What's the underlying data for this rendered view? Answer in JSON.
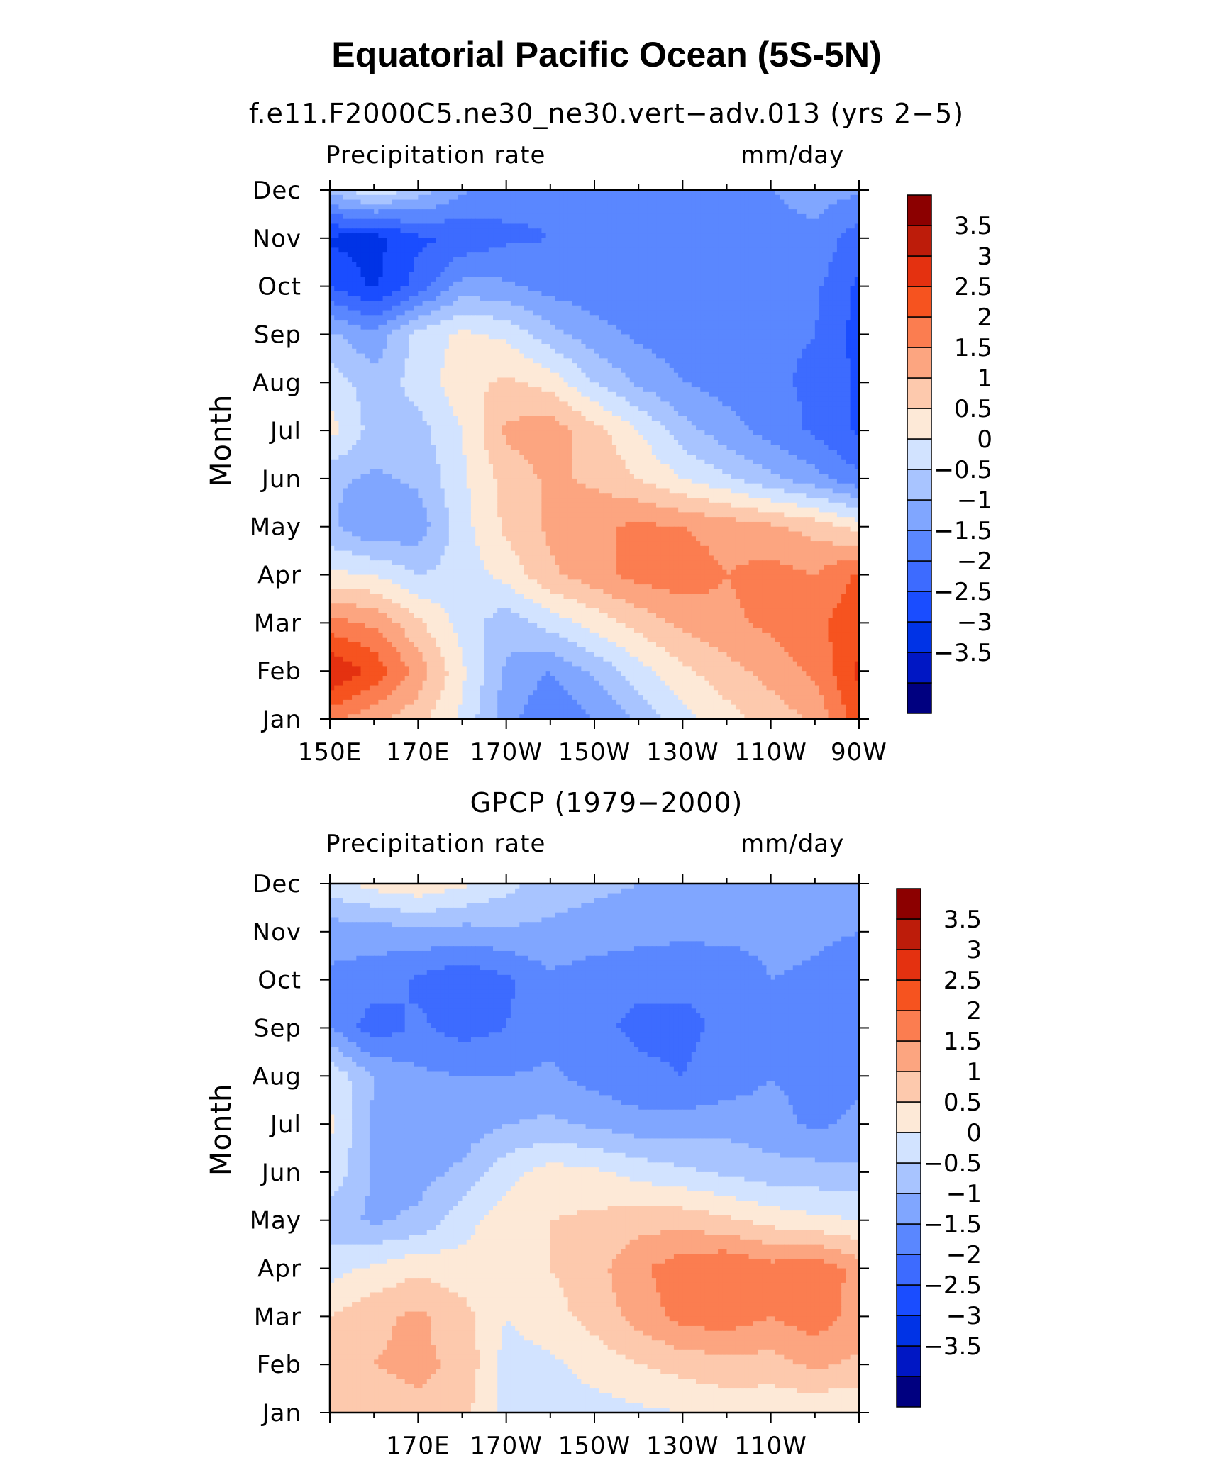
{
  "figure": {
    "title": "Equatorial Pacific Ocean (5S-5N)"
  },
  "palette": [
    "#000080",
    "#0017c4",
    "#0033e6",
    "#1a4dff",
    "#3d6bff",
    "#5a87ff",
    "#80a6ff",
    "#a8c4ff",
    "#d2e3ff",
    "#fde9d7",
    "#fdc9ad",
    "#fca580",
    "#fb7d50",
    "#f6531f",
    "#e43110",
    "#bd1c0a",
    "#8c0000"
  ],
  "chart_data": [
    {
      "type": "heatmap",
      "subtitle": "f.e11.F2000C5.ne30_ne30.vert−adv.013 (yrs 2−5)",
      "variable_label": "Precipitation rate",
      "units": "mm/day",
      "ylabel": "Month",
      "x_tick_labels": [
        "150E",
        "170E",
        "170W",
        "150W",
        "130W",
        "110W",
        "90W"
      ],
      "y_tick_labels": [
        "Jan",
        "Feb",
        "Mar",
        "Apr",
        "May",
        "Jun",
        "Jul",
        "Aug",
        "Sep",
        "Oct",
        "Nov",
        "Dec"
      ],
      "levels": [
        "3.5",
        "3",
        "2.5",
        "2",
        "1.5",
        "1",
        "0.5",
        "0",
        "−0.5",
        "−1",
        "−1.5",
        "−2",
        "−2.5",
        "−3",
        "−3.5"
      ],
      "x_lon": [
        150,
        160,
        170,
        180,
        190,
        200,
        210,
        220,
        230,
        240,
        250,
        260,
        270
      ],
      "values": [
        [
          2.2,
          1.6,
          1.2,
          0.4,
          -0.8,
          -1.5,
          -1.0,
          -0.4,
          0.3,
          0.8,
          1.2,
          1.6,
          2.8
        ],
        [
          3.5,
          2.9,
          1.8,
          0.6,
          -0.6,
          -1.0,
          -0.4,
          0.3,
          0.9,
          1.3,
          1.7,
          2.1,
          3.1
        ],
        [
          2.2,
          1.9,
          1.1,
          0.3,
          -0.3,
          0.2,
          0.7,
          1.2,
          1.6,
          1.9,
          2.1,
          2.4,
          2.8
        ],
        [
          0.6,
          0.5,
          0.0,
          0.2,
          0.7,
          1.4,
          1.8,
          2.2,
          2.3,
          2.0,
          2.2,
          2.0,
          2.6
        ],
        [
          -0.4,
          -1.0,
          -0.8,
          0.3,
          1.1,
          1.6,
          1.9,
          2.1,
          2.0,
          1.8,
          1.6,
          1.3,
          0.8
        ],
        [
          -0.4,
          -0.6,
          -0.4,
          0.4,
          1.2,
          1.6,
          1.4,
          1.0,
          0.5,
          0.1,
          -0.4,
          -0.8,
          -1.4
        ],
        [
          0.7,
          -0.2,
          -0.2,
          0.5,
          1.6,
          1.8,
          1.2,
          0.5,
          -0.3,
          -0.8,
          -1.2,
          -1.6,
          -2.1
        ],
        [
          0.3,
          -0.3,
          0.2,
          0.8,
          1.1,
          0.8,
          0.0,
          -0.6,
          -1.0,
          -1.2,
          -1.4,
          -1.6,
          -2.1
        ],
        [
          -0.4,
          -0.9,
          0.2,
          0.6,
          0.4,
          -0.3,
          -0.8,
          -1.1,
          -1.3,
          -1.4,
          -1.4,
          -1.5,
          -2.2
        ],
        [
          -2.0,
          -2.6,
          -1.8,
          -0.8,
          -0.9,
          -1.2,
          -1.3,
          -1.4,
          -1.4,
          -1.4,
          -1.3,
          -1.4,
          -2.1
        ],
        [
          -2.6,
          -2.7,
          -2.1,
          -1.9,
          -1.6,
          -1.5,
          -1.5,
          -1.5,
          -1.4,
          -1.3,
          -1.2,
          -1.1,
          -1.8
        ],
        [
          -0.3,
          0.4,
          -0.2,
          -0.9,
          -1.3,
          -1.4,
          -1.3,
          -1.3,
          -1.2,
          -1.1,
          -1.0,
          -0.8,
          -0.9
        ]
      ]
    },
    {
      "type": "heatmap",
      "subtitle": "GPCP (1979−2000)",
      "variable_label": "Precipitation rate",
      "units": "mm/day",
      "ylabel": "Month",
      "x_tick_labels": [
        "170E",
        "170W",
        "150W",
        "130W",
        "110W"
      ],
      "y_tick_labels": [
        "Jan",
        "Feb",
        "Mar",
        "Apr",
        "May",
        "Jun",
        "Jul",
        "Aug",
        "Sep",
        "Oct",
        "Nov",
        "Dec"
      ],
      "levels": [
        "3.5",
        "3",
        "2.5",
        "2",
        "1.5",
        "1",
        "0.5",
        "0",
        "−0.5",
        "−1",
        "−1.5",
        "−2",
        "−2.5",
        "−3",
        "−3.5"
      ],
      "x_lon": [
        150,
        160,
        170,
        180,
        190,
        200,
        210,
        220,
        230,
        240,
        250,
        260,
        270
      ],
      "values": [
        [
          1.1,
          1.3,
          1.4,
          1.2,
          0.3,
          0.2,
          0.3,
          0.4,
          0.5,
          0.7,
          0.6,
          0.6,
          0.5
        ],
        [
          1.2,
          1.5,
          1.6,
          1.4,
          0.3,
          0.4,
          0.7,
          1.0,
          1.2,
          1.3,
          1.3,
          1.6,
          1.4
        ],
        [
          1.0,
          1.4,
          1.6,
          1.2,
          0.5,
          0.8,
          1.2,
          1.7,
          2.2,
          2.3,
          2.0,
          2.3,
          1.8
        ],
        [
          0.3,
          0.6,
          0.9,
          0.7,
          0.7,
          1.0,
          1.3,
          1.9,
          2.3,
          2.5,
          2.2,
          2.4,
          1.8
        ],
        [
          -0.3,
          -0.6,
          -0.4,
          0.3,
          0.8,
          1.0,
          1.1,
          1.3,
          1.3,
          1.1,
          0.8,
          0.6,
          0.5
        ],
        [
          0.4,
          -0.6,
          -0.7,
          -0.4,
          0.3,
          0.7,
          0.6,
          0.3,
          0.1,
          -0.1,
          -0.3,
          -0.3,
          -0.4
        ],
        [
          0.6,
          -0.6,
          -0.8,
          -0.8,
          -0.5,
          -0.4,
          -0.6,
          -0.8,
          -0.8,
          -0.7,
          -0.8,
          -1.1,
          -0.9
        ],
        [
          0.4,
          -0.5,
          -0.9,
          -1.0,
          -1.0,
          -0.9,
          -1.2,
          -1.4,
          -1.5,
          -1.3,
          -1.0,
          -1.2,
          -1.1
        ],
        [
          -1.0,
          -1.8,
          -1.4,
          -1.7,
          -1.5,
          -1.2,
          -1.4,
          -1.6,
          -1.6,
          -1.4,
          -1.1,
          -1.3,
          -1.2
        ],
        [
          -1.1,
          -1.2,
          -1.6,
          -1.9,
          -1.6,
          -1.1,
          -1.3,
          -1.4,
          -1.4,
          -1.5,
          -1.0,
          -1.1,
          -1.3
        ],
        [
          -0.8,
          -0.8,
          -0.6,
          -0.7,
          -0.6,
          -0.6,
          -0.7,
          -0.8,
          -0.9,
          -0.8,
          -0.8,
          -0.9,
          -1.0
        ],
        [
          0.3,
          0.7,
          0.9,
          0.6,
          0.2,
          -0.3,
          -0.4,
          -0.5,
          -0.6,
          -0.6,
          -0.7,
          -0.8,
          -0.8
        ]
      ]
    }
  ]
}
